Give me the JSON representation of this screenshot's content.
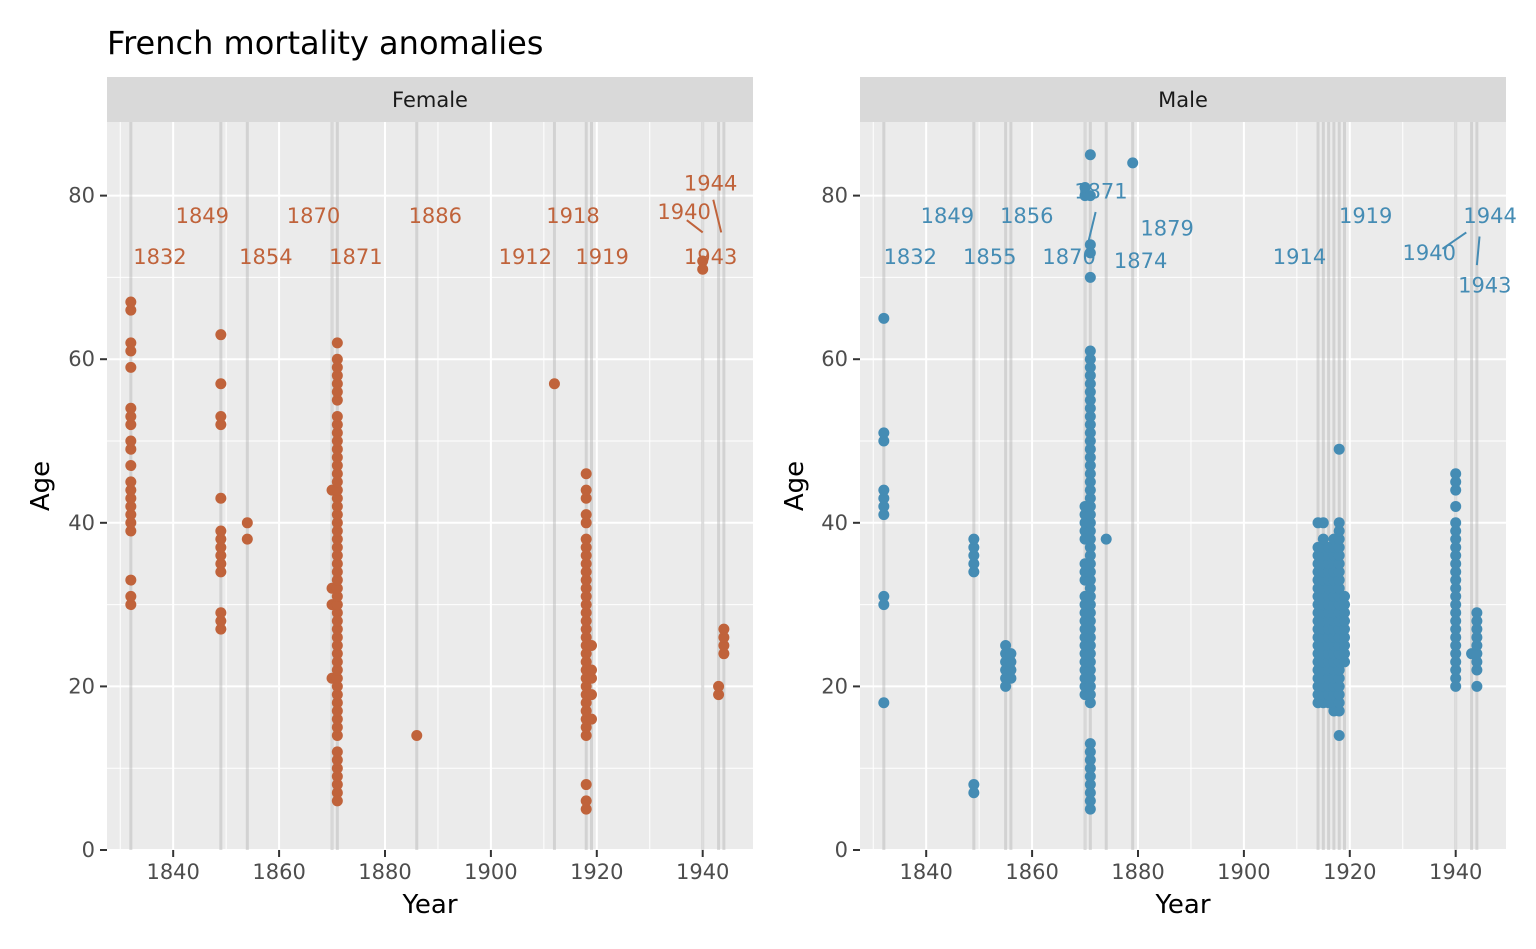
{
  "chart_data": {
    "type": "scatter",
    "title": "French mortality anomalies",
    "xlabel": "Year",
    "ylabel": "Age",
    "xlim": [
      1827.5,
      1949.5
    ],
    "ylim": [
      0,
      89
    ],
    "x_breaks": [
      1840,
      1860,
      1880,
      1900,
      1920,
      1940
    ],
    "y_breaks": [
      0,
      20,
      40,
      60,
      80
    ],
    "grid": true,
    "legend": "none",
    "panels": [
      {
        "name": "Female",
        "color": "#c0633b",
        "anomaly_years": [
          1832,
          1849,
          1854,
          1870,
          1871,
          1886,
          1912,
          1918,
          1919,
          1940,
          1943,
          1944
        ],
        "year_labels": [
          {
            "year": 1832,
            "text": "1832",
            "label_x": 1837.5,
            "label_y": 72.5
          },
          {
            "year": 1849,
            "text": "1849",
            "label_x": 1845.5,
            "label_y": 77.5
          },
          {
            "year": 1854,
            "text": "1854",
            "label_x": 1857.5,
            "label_y": 72.5
          },
          {
            "year": 1870,
            "text": "1870",
            "label_x": 1866.5,
            "label_y": 77.5
          },
          {
            "year": 1871,
            "text": "1871",
            "label_x": 1874.5,
            "label_y": 72.5
          },
          {
            "year": 1886,
            "text": "1886",
            "label_x": 1889.5,
            "label_y": 77.5
          },
          {
            "year": 1912,
            "text": "1912",
            "label_x": 1906.5,
            "label_y": 72.5
          },
          {
            "year": 1918,
            "text": "1918",
            "label_x": 1915.5,
            "label_y": 77.5
          },
          {
            "year": 1919,
            "text": "1919",
            "label_x": 1921.0,
            "label_y": 72.5
          },
          {
            "year": 1940,
            "text": "1940",
            "label_x": 1936.5,
            "label_y": 78.0,
            "seg_start": [
              1937.0,
              77.0
            ],
            "seg_end": [
              1940.0,
              75.5
            ]
          },
          {
            "year": 1943,
            "text": "1943",
            "label_x": 1941.5,
            "label_y": 72.5
          },
          {
            "year": 1944,
            "text": "1944",
            "label_x": 1941.5,
            "label_y": 81.5,
            "seg_start": [
              1942.0,
              79.5
            ],
            "seg_end": [
              1943.5,
              75.5
            ]
          }
        ],
        "points": [
          {
            "year": 1832,
            "ages": [
              30,
              31,
              33,
              39,
              40,
              41,
              42,
              43,
              44,
              45,
              47,
              49,
              50,
              52,
              53,
              54,
              59,
              61,
              62,
              66,
              67
            ]
          },
          {
            "year": 1849,
            "ages": [
              27,
              28,
              29,
              34,
              35,
              36,
              37,
              38,
              39,
              43,
              52,
              53,
              57,
              63
            ]
          },
          {
            "year": 1854,
            "ages": [
              38,
              40
            ]
          },
          {
            "year": 1870,
            "ages": [
              21,
              30,
              32,
              44
            ]
          },
          {
            "year": 1871,
            "ages": [
              6,
              7,
              8,
              9,
              10,
              11,
              12,
              14,
              15,
              16,
              17,
              18,
              19,
              20,
              21,
              22,
              23,
              24,
              25,
              26,
              27,
              28,
              29,
              30,
              31,
              32,
              33,
              34,
              35,
              36,
              37,
              38,
              39,
              40,
              41,
              42,
              43,
              44,
              45,
              46,
              47,
              48,
              49,
              50,
              51,
              52,
              53,
              55,
              56,
              57,
              58,
              59,
              60,
              62
            ]
          },
          {
            "year": 1886,
            "ages": [
              14
            ]
          },
          {
            "year": 1912,
            "ages": [
              57
            ]
          },
          {
            "year": 1918,
            "ages": [
              5,
              6,
              8,
              14,
              15,
              16,
              17,
              18,
              19,
              20,
              21,
              22,
              23,
              24,
              25,
              26,
              27,
              28,
              29,
              30,
              31,
              32,
              33,
              34,
              35,
              36,
              37,
              38,
              40,
              41,
              43,
              44,
              46
            ]
          },
          {
            "year": 1919,
            "ages": [
              16,
              19,
              21,
              22,
              25
            ]
          },
          {
            "year": 1940,
            "ages": [
              71,
              72
            ]
          },
          {
            "year": 1943,
            "ages": [
              19,
              20
            ]
          },
          {
            "year": 1944,
            "ages": [
              24,
              25,
              26,
              27
            ]
          }
        ]
      },
      {
        "name": "Male",
        "color": "#458cb4",
        "anomaly_years": [
          1832,
          1849,
          1855,
          1856,
          1870,
          1871,
          1874,
          1879,
          1914,
          1915,
          1916,
          1917,
          1918,
          1919,
          1940,
          1943,
          1944
        ],
        "year_labels": [
          {
            "year": 1832,
            "text": "1832",
            "label_x": 1837.0,
            "label_y": 72.5
          },
          {
            "year": 1849,
            "text": "1849",
            "label_x": 1844.0,
            "label_y": 77.5
          },
          {
            "year": 1855,
            "text": "1855",
            "label_x": 1852.0,
            "label_y": 72.5
          },
          {
            "year": 1856,
            "text": "1856",
            "label_x": 1859.0,
            "label_y": 77.5
          },
          {
            "year": 1870,
            "text": "1870",
            "label_x": 1867.0,
            "label_y": 72.5
          },
          {
            "year": 1871,
            "text": "1871",
            "label_x": 1873.0,
            "label_y": 80.5,
            "seg_start": [
              1872.0,
              78.0
            ],
            "seg_end": [
              1870.5,
              74.0
            ]
          },
          {
            "year": 1874,
            "text": "1874",
            "label_x": 1880.5,
            "label_y": 72.0
          },
          {
            "year": 1879,
            "text": "1879",
            "label_x": 1885.5,
            "label_y": 76.0
          },
          {
            "year": 1914,
            "text": "1914",
            "label_x": 1910.5,
            "label_y": 72.5
          },
          {
            "year": 1919,
            "text": "1919",
            "label_x": 1923.0,
            "label_y": 77.5
          },
          {
            "year": 1940,
            "text": "1940",
            "label_x": 1935.0,
            "label_y": 73.0,
            "seg_start": [
              1937.5,
              73.5
            ],
            "seg_end": [
              1942.0,
              75.5
            ]
          },
          {
            "year": 1943,
            "text": "1943",
            "label_x": 1945.5,
            "label_y": 69.0,
            "seg_start": [
              1944.0,
              71.5
            ],
            "seg_end": [
              1944.5,
              75.0
            ]
          },
          {
            "year": 1944,
            "text": "1944",
            "label_x": 1946.5,
            "label_y": 77.5
          }
        ],
        "points": [
          {
            "year": 1832,
            "ages": [
              18,
              30,
              31,
              41,
              42,
              43,
              44,
              50,
              51,
              65
            ]
          },
          {
            "year": 1849,
            "ages": [
              7,
              8,
              34,
              35,
              36,
              37,
              38
            ]
          },
          {
            "year": 1855,
            "ages": [
              20,
              21,
              22,
              23,
              24,
              25
            ]
          },
          {
            "year": 1856,
            "ages": [
              21,
              22,
              23,
              24
            ]
          },
          {
            "year": 1870,
            "ages": [
              19,
              20,
              21,
              22,
              23,
              24,
              25,
              26,
              27,
              28,
              29,
              30,
              31,
              33,
              34,
              35,
              38,
              39,
              40,
              41,
              42,
              80,
              81
            ]
          },
          {
            "year": 1871,
            "ages": [
              5,
              6,
              7,
              8,
              9,
              10,
              11,
              12,
              13,
              18,
              19,
              20,
              21,
              22,
              23,
              24,
              25,
              26,
              27,
              28,
              29,
              30,
              31,
              32,
              33,
              34,
              35,
              36,
              37,
              38,
              39,
              40,
              41,
              42,
              43,
              44,
              45,
              46,
              47,
              48,
              49,
              50,
              51,
              52,
              53,
              54,
              55,
              56,
              57,
              58,
              59,
              60,
              61,
              70,
              73,
              74,
              80,
              85
            ]
          },
          {
            "year": 1874,
            "ages": [
              38
            ]
          },
          {
            "year": 1879,
            "ages": [
              84
            ]
          },
          {
            "year": 1914,
            "ages": [
              18,
              19,
              20,
              21,
              22,
              23,
              24,
              25,
              26,
              27,
              28,
              29,
              30,
              31,
              32,
              33,
              34,
              35,
              36,
              37,
              40
            ]
          },
          {
            "year": 1915,
            "ages": [
              18,
              19,
              20,
              21,
              22,
              23,
              24,
              25,
              26,
              27,
              28,
              29,
              30,
              31,
              32,
              33,
              34,
              35,
              36,
              37,
              38,
              40
            ]
          },
          {
            "year": 1916,
            "ages": [
              18,
              19,
              20,
              21,
              22,
              23,
              24,
              25,
              26,
              27,
              28,
              29,
              30,
              31,
              32,
              33,
              34,
              35,
              36,
              37
            ]
          },
          {
            "year": 1917,
            "ages": [
              17,
              18,
              19,
              20,
              21,
              22,
              23,
              24,
              25,
              26,
              27,
              28,
              29,
              30,
              31,
              32,
              33,
              34,
              35,
              36,
              37,
              38
            ]
          },
          {
            "year": 1918,
            "ages": [
              14,
              17,
              18,
              19,
              20,
              21,
              22,
              23,
              24,
              25,
              26,
              27,
              28,
              29,
              30,
              31,
              32,
              33,
              34,
              35,
              36,
              37,
              38,
              39,
              40,
              49
            ]
          },
          {
            "year": 1919,
            "ages": [
              23,
              24,
              25,
              26,
              27,
              28,
              29,
              30,
              31
            ]
          },
          {
            "year": 1940,
            "ages": [
              20,
              21,
              22,
              23,
              24,
              25,
              26,
              27,
              28,
              29,
              30,
              31,
              32,
              33,
              34,
              35,
              36,
              37,
              38,
              39,
              40,
              42,
              44,
              45,
              46
            ]
          },
          {
            "year": 1943,
            "ages": [
              24
            ]
          },
          {
            "year": 1944,
            "ages": [
              20,
              22,
              23,
              24,
              25,
              26,
              27,
              28,
              29
            ]
          }
        ]
      }
    ]
  }
}
